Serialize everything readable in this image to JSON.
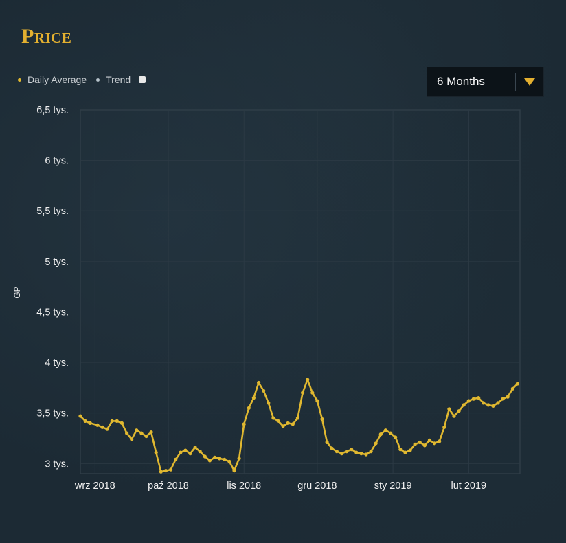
{
  "header": {
    "title": "Price"
  },
  "legend": {
    "daily_average": "Daily Average",
    "trend": "Trend",
    "daily_color": "#e0b830",
    "trend_color": "#b8c4cc"
  },
  "range_select": {
    "value": "6 Months"
  },
  "chart_data": {
    "type": "line",
    "ylabel": "GP",
    "ylim": [
      2900,
      6500
    ],
    "yticks": [
      3000,
      3500,
      4000,
      4500,
      5000,
      5500,
      6000,
      6500
    ],
    "ytick_labels": [
      "3 tys.",
      "3,5 tys.",
      "4 tys.",
      "4,5 tys.",
      "5 tys.",
      "5,5 tys.",
      "6 tys.",
      "6,5 tys."
    ],
    "xlim": [
      "2018-08-26",
      "2019-02-22"
    ],
    "xticks": [
      "2018-09-01",
      "2018-10-01",
      "2018-11-01",
      "2018-12-01",
      "2019-01-01",
      "2019-02-01"
    ],
    "xtick_labels": [
      "wrz 2018",
      "paź 2018",
      "lis 2018",
      "gru 2018",
      "sty 2019",
      "lut 2019"
    ],
    "grid": true,
    "series": [
      {
        "name": "Daily Average",
        "color": "#e0b830",
        "values": [
          [
            "2018-08-26",
            3470
          ],
          [
            "2018-08-28",
            3420
          ],
          [
            "2018-08-30",
            3400
          ],
          [
            "2018-09-02",
            3380
          ],
          [
            "2018-09-04",
            3360
          ],
          [
            "2018-09-06",
            3340
          ],
          [
            "2018-09-08",
            3420
          ],
          [
            "2018-09-10",
            3420
          ],
          [
            "2018-09-12",
            3400
          ],
          [
            "2018-09-14",
            3300
          ],
          [
            "2018-09-16",
            3240
          ],
          [
            "2018-09-18",
            3330
          ],
          [
            "2018-09-20",
            3300
          ],
          [
            "2018-09-22",
            3270
          ],
          [
            "2018-09-24",
            3310
          ],
          [
            "2018-09-26",
            3110
          ],
          [
            "2018-09-28",
            2920
          ],
          [
            "2018-09-30",
            2930
          ],
          [
            "2018-10-02",
            2940
          ],
          [
            "2018-10-04",
            3040
          ],
          [
            "2018-10-06",
            3110
          ],
          [
            "2018-10-08",
            3130
          ],
          [
            "2018-10-10",
            3100
          ],
          [
            "2018-10-12",
            3160
          ],
          [
            "2018-10-14",
            3120
          ],
          [
            "2018-10-16",
            3070
          ],
          [
            "2018-10-18",
            3030
          ],
          [
            "2018-10-20",
            3060
          ],
          [
            "2018-10-22",
            3050
          ],
          [
            "2018-10-24",
            3040
          ],
          [
            "2018-10-26",
            3020
          ],
          [
            "2018-10-28",
            2930
          ],
          [
            "2018-10-30",
            3050
          ],
          [
            "2018-11-01",
            3390
          ],
          [
            "2018-11-03",
            3550
          ],
          [
            "2018-11-05",
            3650
          ],
          [
            "2018-11-07",
            3800
          ],
          [
            "2018-11-09",
            3720
          ],
          [
            "2018-11-11",
            3600
          ],
          [
            "2018-11-13",
            3450
          ],
          [
            "2018-11-15",
            3420
          ],
          [
            "2018-11-17",
            3370
          ],
          [
            "2018-11-19",
            3400
          ],
          [
            "2018-11-21",
            3390
          ],
          [
            "2018-11-23",
            3450
          ],
          [
            "2018-11-25",
            3700
          ],
          [
            "2018-11-27",
            3830
          ],
          [
            "2018-11-29",
            3700
          ],
          [
            "2018-12-01",
            3620
          ],
          [
            "2018-12-03",
            3440
          ],
          [
            "2018-12-05",
            3210
          ],
          [
            "2018-12-07",
            3150
          ],
          [
            "2018-12-09",
            3120
          ],
          [
            "2018-12-11",
            3100
          ],
          [
            "2018-12-13",
            3120
          ],
          [
            "2018-12-15",
            3140
          ],
          [
            "2018-12-17",
            3110
          ],
          [
            "2018-12-19",
            3100
          ],
          [
            "2018-12-21",
            3090
          ],
          [
            "2018-12-23",
            3120
          ],
          [
            "2018-12-25",
            3200
          ],
          [
            "2018-12-27",
            3290
          ],
          [
            "2018-12-29",
            3330
          ],
          [
            "2018-12-31",
            3300
          ],
          [
            "2019-01-02",
            3260
          ],
          [
            "2019-01-04",
            3140
          ],
          [
            "2019-01-06",
            3110
          ],
          [
            "2019-01-08",
            3130
          ],
          [
            "2019-01-10",
            3190
          ],
          [
            "2019-01-12",
            3210
          ],
          [
            "2019-01-14",
            3180
          ],
          [
            "2019-01-16",
            3230
          ],
          [
            "2019-01-18",
            3200
          ],
          [
            "2019-01-20",
            3220
          ],
          [
            "2019-01-22",
            3360
          ],
          [
            "2019-01-24",
            3540
          ],
          [
            "2019-01-26",
            3470
          ],
          [
            "2019-01-28",
            3520
          ],
          [
            "2019-01-30",
            3580
          ],
          [
            "2019-02-01",
            3620
          ],
          [
            "2019-02-03",
            3640
          ],
          [
            "2019-02-05",
            3650
          ],
          [
            "2019-02-07",
            3600
          ],
          [
            "2019-02-09",
            3580
          ],
          [
            "2019-02-11",
            3570
          ],
          [
            "2019-02-13",
            3600
          ],
          [
            "2019-02-15",
            3640
          ],
          [
            "2019-02-17",
            3660
          ],
          [
            "2019-02-19",
            3740
          ],
          [
            "2019-02-21",
            3790
          ]
        ]
      }
    ]
  }
}
